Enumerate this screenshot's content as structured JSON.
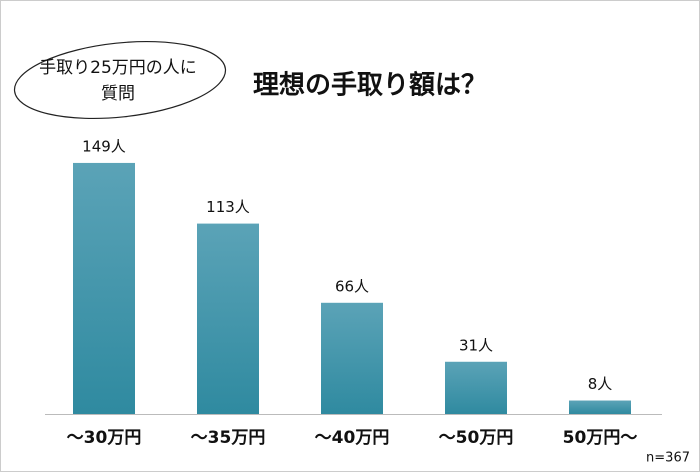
{
  "chart_data": {
    "type": "bar",
    "title": "理想の手取り額は？",
    "annotation": [
      "手取り25万円の人に",
      "質問"
    ],
    "categories": [
      "～30万円",
      "～35万円",
      "～40万円",
      "～50万円",
      "50万円～"
    ],
    "values": [
      149,
      113,
      66,
      31,
      8
    ],
    "value_labels": [
      "149人",
      "113人",
      "66人",
      "31人",
      "8人"
    ],
    "color": "#3a92a8",
    "note": "n=367"
  }
}
